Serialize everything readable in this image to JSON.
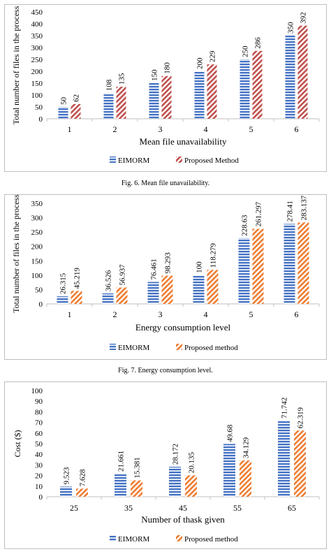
{
  "chart_data": [
    {
      "type": "bar",
      "title": "",
      "xlabel": "Mean file unavailability",
      "ylabel": "Total number of files in the process",
      "categories": [
        "1",
        "2",
        "3",
        "4",
        "5",
        "6"
      ],
      "ylim": [
        0,
        450
      ],
      "yticks": [
        0,
        50,
        100,
        150,
        200,
        250,
        300,
        350,
        400,
        450
      ],
      "legend_position": "bottom",
      "grid": false,
      "series": [
        {
          "name": "EIMORM",
          "values": [
            50,
            108,
            150,
            200,
            250,
            350
          ],
          "labels": [
            "50",
            "108",
            "150",
            "200",
            "250",
            "350"
          ],
          "color": "#4472c4",
          "pattern": "horizontal-stripes"
        },
        {
          "name": "Proposed Method",
          "values": [
            62,
            135,
            180,
            229,
            286,
            392
          ],
          "labels": [
            "62",
            "135",
            "180",
            "229",
            "286",
            "392"
          ],
          "color": "#c0504d",
          "pattern": "diagonal-stripes"
        }
      ]
    },
    {
      "type": "bar",
      "title": "",
      "xlabel": "Energy consumption level",
      "ylabel": "Total number of files in the process",
      "categories": [
        "1",
        "2",
        "3",
        "4",
        "5",
        "6"
      ],
      "ylim": [
        0,
        350
      ],
      "yticks": [
        0,
        50,
        100,
        150,
        200,
        250,
        300,
        350
      ],
      "legend_position": "bottom",
      "grid": false,
      "series": [
        {
          "name": "EIMORM",
          "values": [
            26.315,
            36.526,
            76.461,
            100,
            228.63,
            278.41
          ],
          "labels": [
            "26.315",
            "36.526",
            "76.461",
            "100",
            "228.63",
            "278.41"
          ],
          "color": "#4472c4",
          "pattern": "horizontal-stripes"
        },
        {
          "name": "Proposed method",
          "values": [
            45.219,
            56.937,
            98.293,
            118.279,
            261.297,
            283.137
          ],
          "labels": [
            "45.219",
            "56.937",
            "98.293",
            "118.279",
            "261.297",
            "283.137"
          ],
          "color": "#ed7d31",
          "pattern": "diagonal-stripes"
        }
      ]
    },
    {
      "type": "bar",
      "title": "",
      "xlabel": "Number of thask given",
      "ylabel": "Cost ($)",
      "categories": [
        "25",
        "35",
        "45",
        "55",
        "65"
      ],
      "ylim": [
        0,
        100
      ],
      "yticks": [
        0,
        10,
        20,
        30,
        40,
        50,
        60,
        70,
        80,
        90,
        100
      ],
      "legend_position": "bottom",
      "grid": false,
      "series": [
        {
          "name": "EIMORM",
          "values": [
            9.523,
            21.661,
            28.172,
            49.68,
            71.742
          ],
          "labels": [
            "9.523",
            "21.661",
            "28.172",
            "49.68",
            "71.742"
          ],
          "color": "#4472c4",
          "pattern": "horizontal-stripes"
        },
        {
          "name": "Proposed method",
          "values": [
            7.628,
            15.381,
            20.135,
            34.129,
            62.319
          ],
          "labels": [
            "7.628",
            "15.381",
            "20.135",
            "34.129",
            "62.319"
          ],
          "color": "#ed7d31",
          "pattern": "diagonal-stripes"
        }
      ]
    }
  ],
  "captions": {
    "fig6": "Fig. 6.   Mean file unavailability.",
    "fig7": "Fig. 7.   Energy consumption level."
  }
}
